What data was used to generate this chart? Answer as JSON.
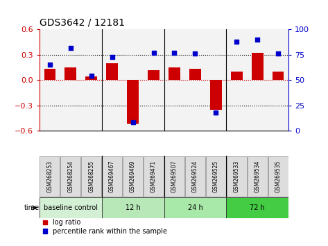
{
  "title": "GDS3642 / 12181",
  "samples": [
    "GSM268253",
    "GSM268254",
    "GSM268255",
    "GSM269467",
    "GSM269469",
    "GSM269471",
    "GSM269507",
    "GSM269524",
    "GSM269525",
    "GSM269533",
    "GSM269534",
    "GSM269535"
  ],
  "log_ratio": [
    0.13,
    0.15,
    0.04,
    0.2,
    -0.52,
    0.12,
    0.15,
    0.13,
    -0.35,
    0.1,
    0.32,
    0.1
  ],
  "percentile_rank": [
    65,
    82,
    54,
    73,
    8,
    77,
    77,
    76,
    18,
    88,
    90,
    76
  ],
  "groups": [
    {
      "label": "baseline control",
      "start": 0,
      "end": 3,
      "color": "#d4f0d4"
    },
    {
      "label": "12 h",
      "start": 3,
      "end": 6,
      "color": "#b8e8b8"
    },
    {
      "label": "24 h",
      "start": 6,
      "end": 9,
      "color": "#a8e8a8"
    },
    {
      "label": "72 h",
      "start": 9,
      "end": 12,
      "color": "#44cc44"
    }
  ],
  "bar_color": "#cc0000",
  "dot_color": "#0000cc",
  "ylim_left": [
    -0.6,
    0.6
  ],
  "ylim_right": [
    0,
    100
  ],
  "yticks_left": [
    -0.6,
    -0.3,
    0.0,
    0.3,
    0.6
  ],
  "yticks_right": [
    0,
    25,
    50,
    75,
    100
  ],
  "dotted_lines_black": [
    -0.3,
    0.3
  ],
  "dotted_line_red": 0.0,
  "background_color": "#ffffff",
  "left_axis_color": "#cc0000",
  "right_axis_color": "#0000cc",
  "sample_box_color": "#dddddd",
  "group_boundaries": [
    3,
    6,
    9
  ]
}
